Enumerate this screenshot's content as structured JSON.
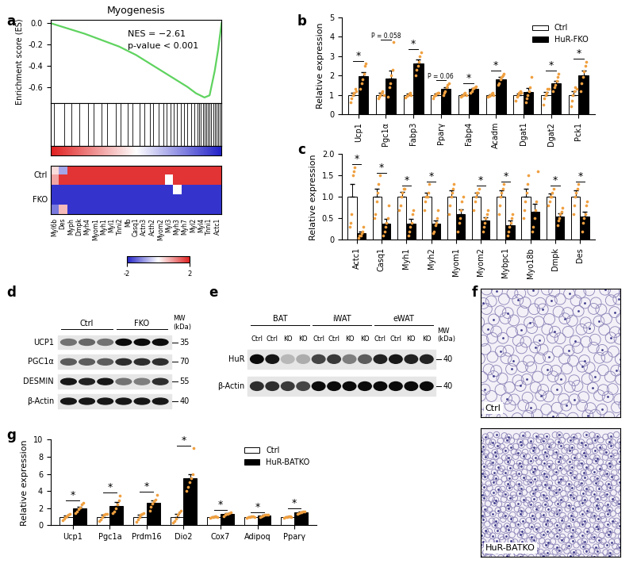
{
  "chart_data": [
    {
      "panel": "a",
      "type": "line",
      "title": "Myogenesis",
      "y_label": "Enrichment score (ES)",
      "annotations": [
        "NES = −2.61",
        "p-value < 0.001"
      ],
      "color": "#5fd35f",
      "x": [
        0,
        0.1,
        0.2,
        0.3,
        0.4,
        0.5,
        0.6,
        0.7,
        0.8,
        0.85,
        0.9,
        0.93,
        0.96,
        0.98,
        1.0
      ],
      "values": [
        0,
        -0.05,
        -0.1,
        -0.16,
        -0.22,
        -0.3,
        -0.4,
        -0.5,
        -0.6,
        -0.66,
        -0.7,
        -0.68,
        -0.45,
        -0.25,
        0
      ],
      "xlim": [
        0,
        1
      ],
      "ylim": [
        -0.75,
        0.03
      ],
      "yticks": [
        0.0,
        -0.2,
        -0.4,
        -0.6
      ],
      "tick_labels": "y",
      "hits": [
        0.02,
        0.08,
        0.12,
        0.17,
        0.22,
        0.25,
        0.3,
        0.33,
        0.38,
        0.41,
        0.45,
        0.48,
        0.52,
        0.55,
        0.58,
        0.6,
        0.63,
        0.66,
        0.68,
        0.7,
        0.72,
        0.74,
        0.76,
        0.78,
        0.8,
        0.82,
        0.84,
        0.86,
        0.87,
        0.88,
        0.89,
        0.9,
        0.91,
        0.92,
        0.93,
        0.94,
        0.95,
        0.96,
        0.97,
        0.98,
        0.99
      ],
      "heatmap": {
        "genes": [
          "Myl6b",
          "Des",
          "Myph",
          "Dmpk",
          "Myh4",
          "Myom1",
          "Myh1",
          "Myl1",
          "Tnni2",
          "Mb",
          "Casq1",
          "Actn3",
          "Acth2",
          "Myom2",
          "Myl3",
          "Myh3",
          "Myh7",
          "Myl2",
          "Myl4",
          "Tnni1",
          "Actc1"
        ],
        "rows": [
          {
            "name": "Ctrl",
            "cells": [
              [
                0.3,
                -0.8,
                1.8,
                1.8,
                1.8,
                1.8,
                1.8,
                1.8,
                1.8,
                1.8,
                1.8,
                1.8,
                1.8,
                1.8,
                1.8,
                1.8,
                1.8,
                1.8,
                1.8,
                1.8,
                1.8
              ],
              [
                0.8,
                1.8,
                1.8,
                1.8,
                1.8,
                1.8,
                1.8,
                1.8,
                1.8,
                1.8,
                1.8,
                1.8,
                1.8,
                1.8,
                0.0,
                1.8,
                1.8,
                1.8,
                1.8,
                1.8,
                1.8
              ]
            ]
          },
          {
            "name": "FKO",
            "cells": [
              [
                -1.8,
                -1.8,
                -1.8,
                -1.8,
                -1.8,
                -1.8,
                -1.8,
                -1.8,
                -1.8,
                -1.8,
                -1.8,
                -1.8,
                -1.8,
                -1.8,
                -1.8,
                0.0,
                -1.8,
                -1.8,
                -1.8,
                -1.8,
                -1.8
              ],
              [
                -1.8,
                -1.8,
                -1.8,
                -1.8,
                -1.8,
                -1.8,
                -1.8,
                -1.8,
                -1.8,
                -1.8,
                -1.8,
                -1.8,
                -1.8,
                -1.8,
                -1.8,
                -1.8,
                -1.8,
                -1.8,
                -1.8,
                -1.8,
                -1.8
              ],
              [
                -1.2,
                0.6,
                -1.8,
                -1.8,
                -1.8,
                -1.8,
                -1.8,
                -1.8,
                -1.8,
                -1.8,
                -1.8,
                -1.8,
                -1.8,
                -1.8,
                -1.8,
                -1.8,
                -1.8,
                -1.8,
                -1.8,
                -1.8,
                -1.8
              ]
            ]
          }
        ],
        "colorbar": {
          "range": [
            -2,
            2
          ],
          "ticks": [
            -2,
            2
          ]
        }
      }
    },
    {
      "panel": "b",
      "type": "bar",
      "y_label": "Relative expression",
      "legend": "upper right",
      "categories": [
        "Ucp1",
        "Pgc1α",
        "Fabp3",
        "Pparγ",
        "Fabp4",
        "Acadm",
        "Dgat1",
        "Dgat2",
        "Pck1"
      ],
      "ylim": [
        0,
        5
      ],
      "yticks": [
        0,
        1,
        2,
        3,
        4,
        5
      ],
      "annotations": [
        "*",
        "P = 0.058",
        "*",
        "P = 0.06",
        "*",
        "*",
        null,
        "*",
        "*"
      ],
      "series": [
        {
          "name": "Ctrl",
          "color": "#ffffff",
          "values": [
            1,
            1,
            1,
            1,
            1,
            1,
            1,
            1,
            1
          ],
          "errors": [
            0.12,
            0.1,
            0.05,
            0.06,
            0.04,
            0.04,
            0.08,
            0.15,
            0.2
          ],
          "points": [
            [
              0.6,
              0.8,
              1.0,
              1.1,
              1.3,
              1.2
            ],
            [
              0.8,
              0.9,
              1.0,
              1.1,
              1.2,
              1.0
            ],
            [
              0.85,
              0.95,
              1.0,
              1.05,
              1.1,
              1.0
            ],
            [
              0.8,
              0.95,
              1.0,
              1.05,
              1.1,
              1.1
            ],
            [
              0.9,
              0.95,
              1.0,
              1.05,
              1.1,
              1.0
            ],
            [
              0.9,
              0.95,
              1.0,
              1.05,
              1.1,
              1.0
            ],
            [
              0.7,
              0.9,
              1.0,
              1.1,
              1.2,
              1.1
            ],
            [
              0.5,
              0.8,
              1.0,
              1.1,
              1.3,
              1.3
            ],
            [
              0.4,
              0.7,
              1.0,
              1.2,
              1.4,
              1.3
            ]
          ]
        },
        {
          "name": "HuR-FKO",
          "color": "#000000",
          "values": [
            1.95,
            1.85,
            2.6,
            1.3,
            1.3,
            1.8,
            1.15,
            1.6,
            2.0
          ],
          "errors": [
            0.2,
            0.4,
            0.2,
            0.1,
            0.05,
            0.1,
            0.2,
            0.12,
            0.25
          ],
          "points": [
            [
              1.3,
              1.6,
              1.8,
              2.1,
              2.5,
              2.6
            ],
            [
              0.9,
              1.4,
              1.6,
              2.0,
              2.3,
              3.7
            ],
            [
              2.0,
              2.3,
              2.5,
              2.7,
              3.0,
              3.2
            ],
            [
              1.0,
              1.1,
              1.2,
              1.4,
              1.5,
              1.6
            ],
            [
              1.1,
              1.2,
              1.3,
              1.35,
              1.4,
              1.45
            ],
            [
              1.5,
              1.6,
              1.8,
              1.9,
              2.0,
              2.1
            ],
            [
              0.6,
              0.8,
              1.0,
              1.2,
              1.4,
              1.9
            ],
            [
              1.2,
              1.4,
              1.5,
              1.7,
              1.9,
              2.1
            ],
            [
              1.2,
              1.6,
              1.9,
              2.2,
              2.5,
              2.7
            ]
          ]
        }
      ]
    },
    {
      "panel": "c",
      "type": "bar",
      "y_label": "Relative expression",
      "categories": [
        "Actc1",
        "Casq1",
        "Myh1",
        "Myh2",
        "Myom1",
        "Myom2",
        "Mybpc1",
        "Myo18b",
        "Dmpk",
        "Des"
      ],
      "ylim": [
        0,
        2.0
      ],
      "yticks": [
        0,
        0.5,
        1.0,
        1.5,
        2.0
      ],
      "annotations": [
        "*",
        "*",
        "*",
        "*",
        null,
        "*",
        "*",
        null,
        "*",
        "*"
      ],
      "series": [
        {
          "color": "#ffffff",
          "values": [
            1,
            1,
            1,
            1,
            1,
            1,
            1,
            1,
            1,
            1
          ],
          "errors": [
            0.3,
            0.2,
            0.12,
            0.1,
            0.15,
            0.1,
            0.15,
            0.2,
            0.08,
            0.15
          ],
          "points": [
            [
              0.3,
              0.4,
              0.6,
              1.5,
              1.6,
              1.7
            ],
            [
              0.5,
              0.6,
              0.9,
              1.1,
              1.3,
              1.5
            ],
            [
              0.7,
              0.8,
              1.0,
              1.1,
              1.2,
              1.2
            ],
            [
              0.7,
              0.9,
              1.0,
              1.0,
              1.1,
              1.3
            ],
            [
              0.6,
              0.8,
              1.0,
              1.1,
              1.2,
              1.3
            ],
            [
              0.7,
              0.9,
              1.0,
              1.1,
              1.1,
              1.2
            ],
            [
              0.6,
              0.8,
              1.0,
              1.1,
              1.2,
              1.3
            ],
            [
              0.5,
              0.7,
              0.9,
              1.1,
              1.3,
              1.5
            ],
            [
              0.8,
              0.9,
              1.0,
              1.0,
              1.1,
              1.2
            ],
            [
              0.6,
              0.8,
              1.0,
              1.1,
              1.2,
              1.3
            ]
          ]
        },
        {
          "color": "#000000",
          "values": [
            0.15,
            0.38,
            0.38,
            0.38,
            0.6,
            0.45,
            0.35,
            0.65,
            0.55,
            0.55
          ],
          "errors": [
            0.05,
            0.1,
            0.1,
            0.08,
            0.12,
            0.08,
            0.1,
            0.2,
            0.06,
            0.1
          ],
          "points": [
            [
              0.05,
              0.1,
              0.1,
              0.15,
              0.2,
              0.3
            ],
            [
              0.1,
              0.2,
              0.3,
              0.4,
              0.5,
              0.8
            ],
            [
              0.1,
              0.2,
              0.3,
              0.4,
              0.6,
              0.7
            ],
            [
              0.15,
              0.2,
              0.35,
              0.4,
              0.5,
              0.7
            ],
            [
              0.2,
              0.4,
              0.5,
              0.7,
              0.9,
              1.0
            ],
            [
              0.2,
              0.3,
              0.4,
              0.5,
              0.6,
              0.7
            ],
            [
              0.1,
              0.2,
              0.3,
              0.4,
              0.5,
              0.6
            ],
            [
              0.2,
              0.3,
              0.5,
              0.7,
              0.9,
              1.6
            ],
            [
              0.35,
              0.45,
              0.5,
              0.6,
              0.65,
              0.75
            ],
            [
              0.2,
              0.4,
              0.5,
              0.6,
              0.8,
              0.9
            ]
          ]
        }
      ]
    },
    {
      "panel": "g",
      "type": "bar",
      "y_label": "Relative expression",
      "legend": "upper right",
      "categories": [
        "Ucp1",
        "Pgc1a",
        "Prdm16",
        "Dio2",
        "Cox7",
        "Adipoq",
        "Pparγ"
      ],
      "ylim": [
        0,
        10
      ],
      "yticks": [
        0,
        2,
        4,
        6,
        8,
        10
      ],
      "annotations": [
        "*",
        "*",
        "*",
        "*",
        "*",
        "*",
        "*"
      ],
      "series": [
        {
          "name": "Ctrl",
          "color": "#ffffff",
          "values": [
            1,
            1,
            1,
            1,
            1,
            1,
            1
          ],
          "errors": [
            0.15,
            0.2,
            0.2,
            0.3,
            0.05,
            0.04,
            0.05
          ],
          "points": [
            [
              0.6,
              0.8,
              1.0,
              1.1,
              1.2,
              1.3
            ],
            [
              0.5,
              0.7,
              1.0,
              1.2,
              1.3,
              1.3
            ],
            [
              0.4,
              0.7,
              1.0,
              1.2,
              1.3,
              1.4
            ],
            [
              0.3,
              0.5,
              0.8,
              1.2,
              1.5,
              1.7
            ],
            [
              0.9,
              0.95,
              1.0,
              1.05,
              1.1,
              1.0
            ],
            [
              0.9,
              0.95,
              1.0,
              1.05,
              1.1,
              1.0
            ],
            [
              0.9,
              0.95,
              1.0,
              1.05,
              1.1,
              1.0
            ]
          ]
        },
        {
          "name": "HuR-BATKO",
          "color": "#000000",
          "values": [
            2.0,
            2.3,
            2.6,
            5.5,
            1.3,
            1.15,
            1.5
          ],
          "errors": [
            0.2,
            0.4,
            0.3,
            0.5,
            0.08,
            0.05,
            0.08
          ],
          "points": [
            [
              1.4,
              1.6,
              1.9,
              2.1,
              2.4,
              2.6
            ],
            [
              1.4,
              1.6,
              2.0,
              2.4,
              2.9,
              3.5
            ],
            [
              1.7,
              2.2,
              2.5,
              2.8,
              3.0,
              3.6
            ],
            [
              4.0,
              4.5,
              5.0,
              5.5,
              6.0,
              9.0
            ],
            [
              1.1,
              1.2,
              1.3,
              1.35,
              1.4,
              1.5
            ],
            [
              1.0,
              1.1,
              1.15,
              1.2,
              1.25,
              1.2
            ],
            [
              1.3,
              1.4,
              1.5,
              1.55,
              1.6,
              1.65
            ]
          ]
        }
      ]
    }
  ],
  "blots": [
    {
      "panel": "d",
      "mw_label": "MW\n(kDa)",
      "groups": [
        {
          "name": "Ctrl",
          "lanes": 3
        },
        {
          "name": "FKO",
          "lanes": 3
        }
      ],
      "rows": [
        {
          "name": "UCP1",
          "mw": 35,
          "bands": [
            0.5,
            0.55,
            0.5,
            0.95,
            0.95,
            0.95
          ]
        },
        {
          "name": "PGC1α",
          "mw": 70,
          "bands": [
            0.6,
            0.6,
            0.6,
            0.8,
            0.8,
            0.8
          ]
        },
        {
          "name": "DESMIN",
          "mw": 55,
          "bands": [
            0.9,
            0.85,
            0.9,
            0.5,
            0.45,
            0.8
          ]
        },
        {
          "name": "β-Actin",
          "mw": 40,
          "bands": [
            0.9,
            0.9,
            0.9,
            0.9,
            0.9,
            0.9
          ]
        }
      ]
    },
    {
      "panel": "e",
      "mw_label": "MW\n(kDa)",
      "groups": [
        {
          "name": "BAT",
          "lanes": [
            "Ctrl",
            "Ctrl",
            "KO",
            "KO"
          ]
        },
        {
          "name": "iWAT",
          "lanes": [
            "Ctrl",
            "Ctrl",
            "KO",
            "KO"
          ]
        },
        {
          "name": "eWAT",
          "lanes": [
            "Ctrl",
            "Ctrl",
            "KO",
            "KO"
          ]
        }
      ],
      "rows": [
        {
          "name": "HuR",
          "mw": 40,
          "bands": [
            0.95,
            0.9,
            0.2,
            0.25,
            0.7,
            0.75,
            0.45,
            0.6,
            0.85,
            0.9,
            0.85,
            0.85
          ]
        },
        {
          "name": "β-Actin",
          "mw": 40,
          "bands": [
            0.8,
            0.8,
            0.75,
            0.7,
            0.95,
            0.95,
            0.95,
            0.95,
            0.95,
            0.95,
            0.95,
            0.95
          ]
        }
      ]
    }
  ],
  "images": {
    "panel": "f",
    "labels": [
      "Ctrl",
      "HuR-BATKO"
    ]
  }
}
